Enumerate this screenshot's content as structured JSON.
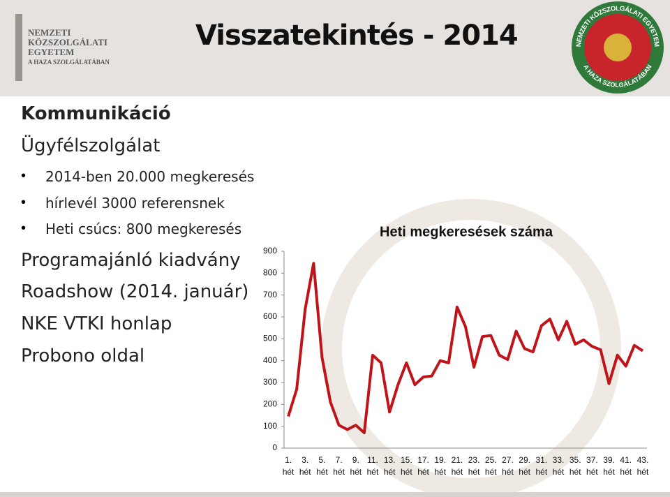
{
  "header": {
    "logo_lines": [
      "NEMZETI",
      "KÖZSZOLGÁLATI",
      "EGYETEM",
      "A HAZA SZOLGÁLATÁBAN"
    ],
    "title": "Visszatekintés - 2014",
    "seal": {
      "top_text": "NEMZETI KÖZSZOLGÁLATI EGYETEM",
      "bottom_text": "A HAZA SZOLGÁLATÁBAN"
    }
  },
  "content": {
    "heading": "Kommunikáció",
    "subheading": "Ügyfélszolgálat",
    "bullets": [
      "2014-ben 20.000 megkeresés",
      "hírlevél 3000 referensnek",
      "Heti csúcs: 800 megkeresés"
    ],
    "items": [
      "Programajánló kiadvány",
      "Roadshow (2014. január)",
      "NKE VTKI honlap",
      "Probono oldal"
    ]
  },
  "chart_data": {
    "type": "line",
    "title": "Heti megkeresések száma",
    "categories": [
      "1. hét",
      null,
      "3. hét",
      null,
      "5. hét",
      null,
      "7. hét",
      null,
      "9. hét",
      null,
      "11. hét",
      null,
      "13. hét",
      null,
      "15. hét",
      null,
      "17. hét",
      null,
      "19. hét",
      null,
      "21. hét",
      null,
      "23. hét",
      null,
      "25. hét",
      null,
      "27. hét",
      null,
      "29. hét",
      null,
      "31. hét",
      null,
      "33. hét",
      null,
      "35. hét",
      null,
      "37. hét",
      null,
      "39. hét",
      null,
      "41. hét",
      null,
      "43. hét"
    ],
    "values": [
      145,
      270,
      635,
      845,
      415,
      210,
      105,
      85,
      105,
      70,
      425,
      390,
      165,
      290,
      390,
      290,
      325,
      330,
      400,
      390,
      645,
      555,
      370,
      510,
      515,
      425,
      405,
      535,
      455,
      440,
      560,
      590,
      495,
      580,
      475,
      495,
      465,
      450,
      295,
      425,
      375,
      470,
      445
    ],
    "color": "#c0141b",
    "ylim": [
      0,
      900
    ],
    "yticks": [
      0,
      100,
      200,
      300,
      400,
      500,
      600,
      700,
      800,
      900
    ],
    "grid": false
  }
}
